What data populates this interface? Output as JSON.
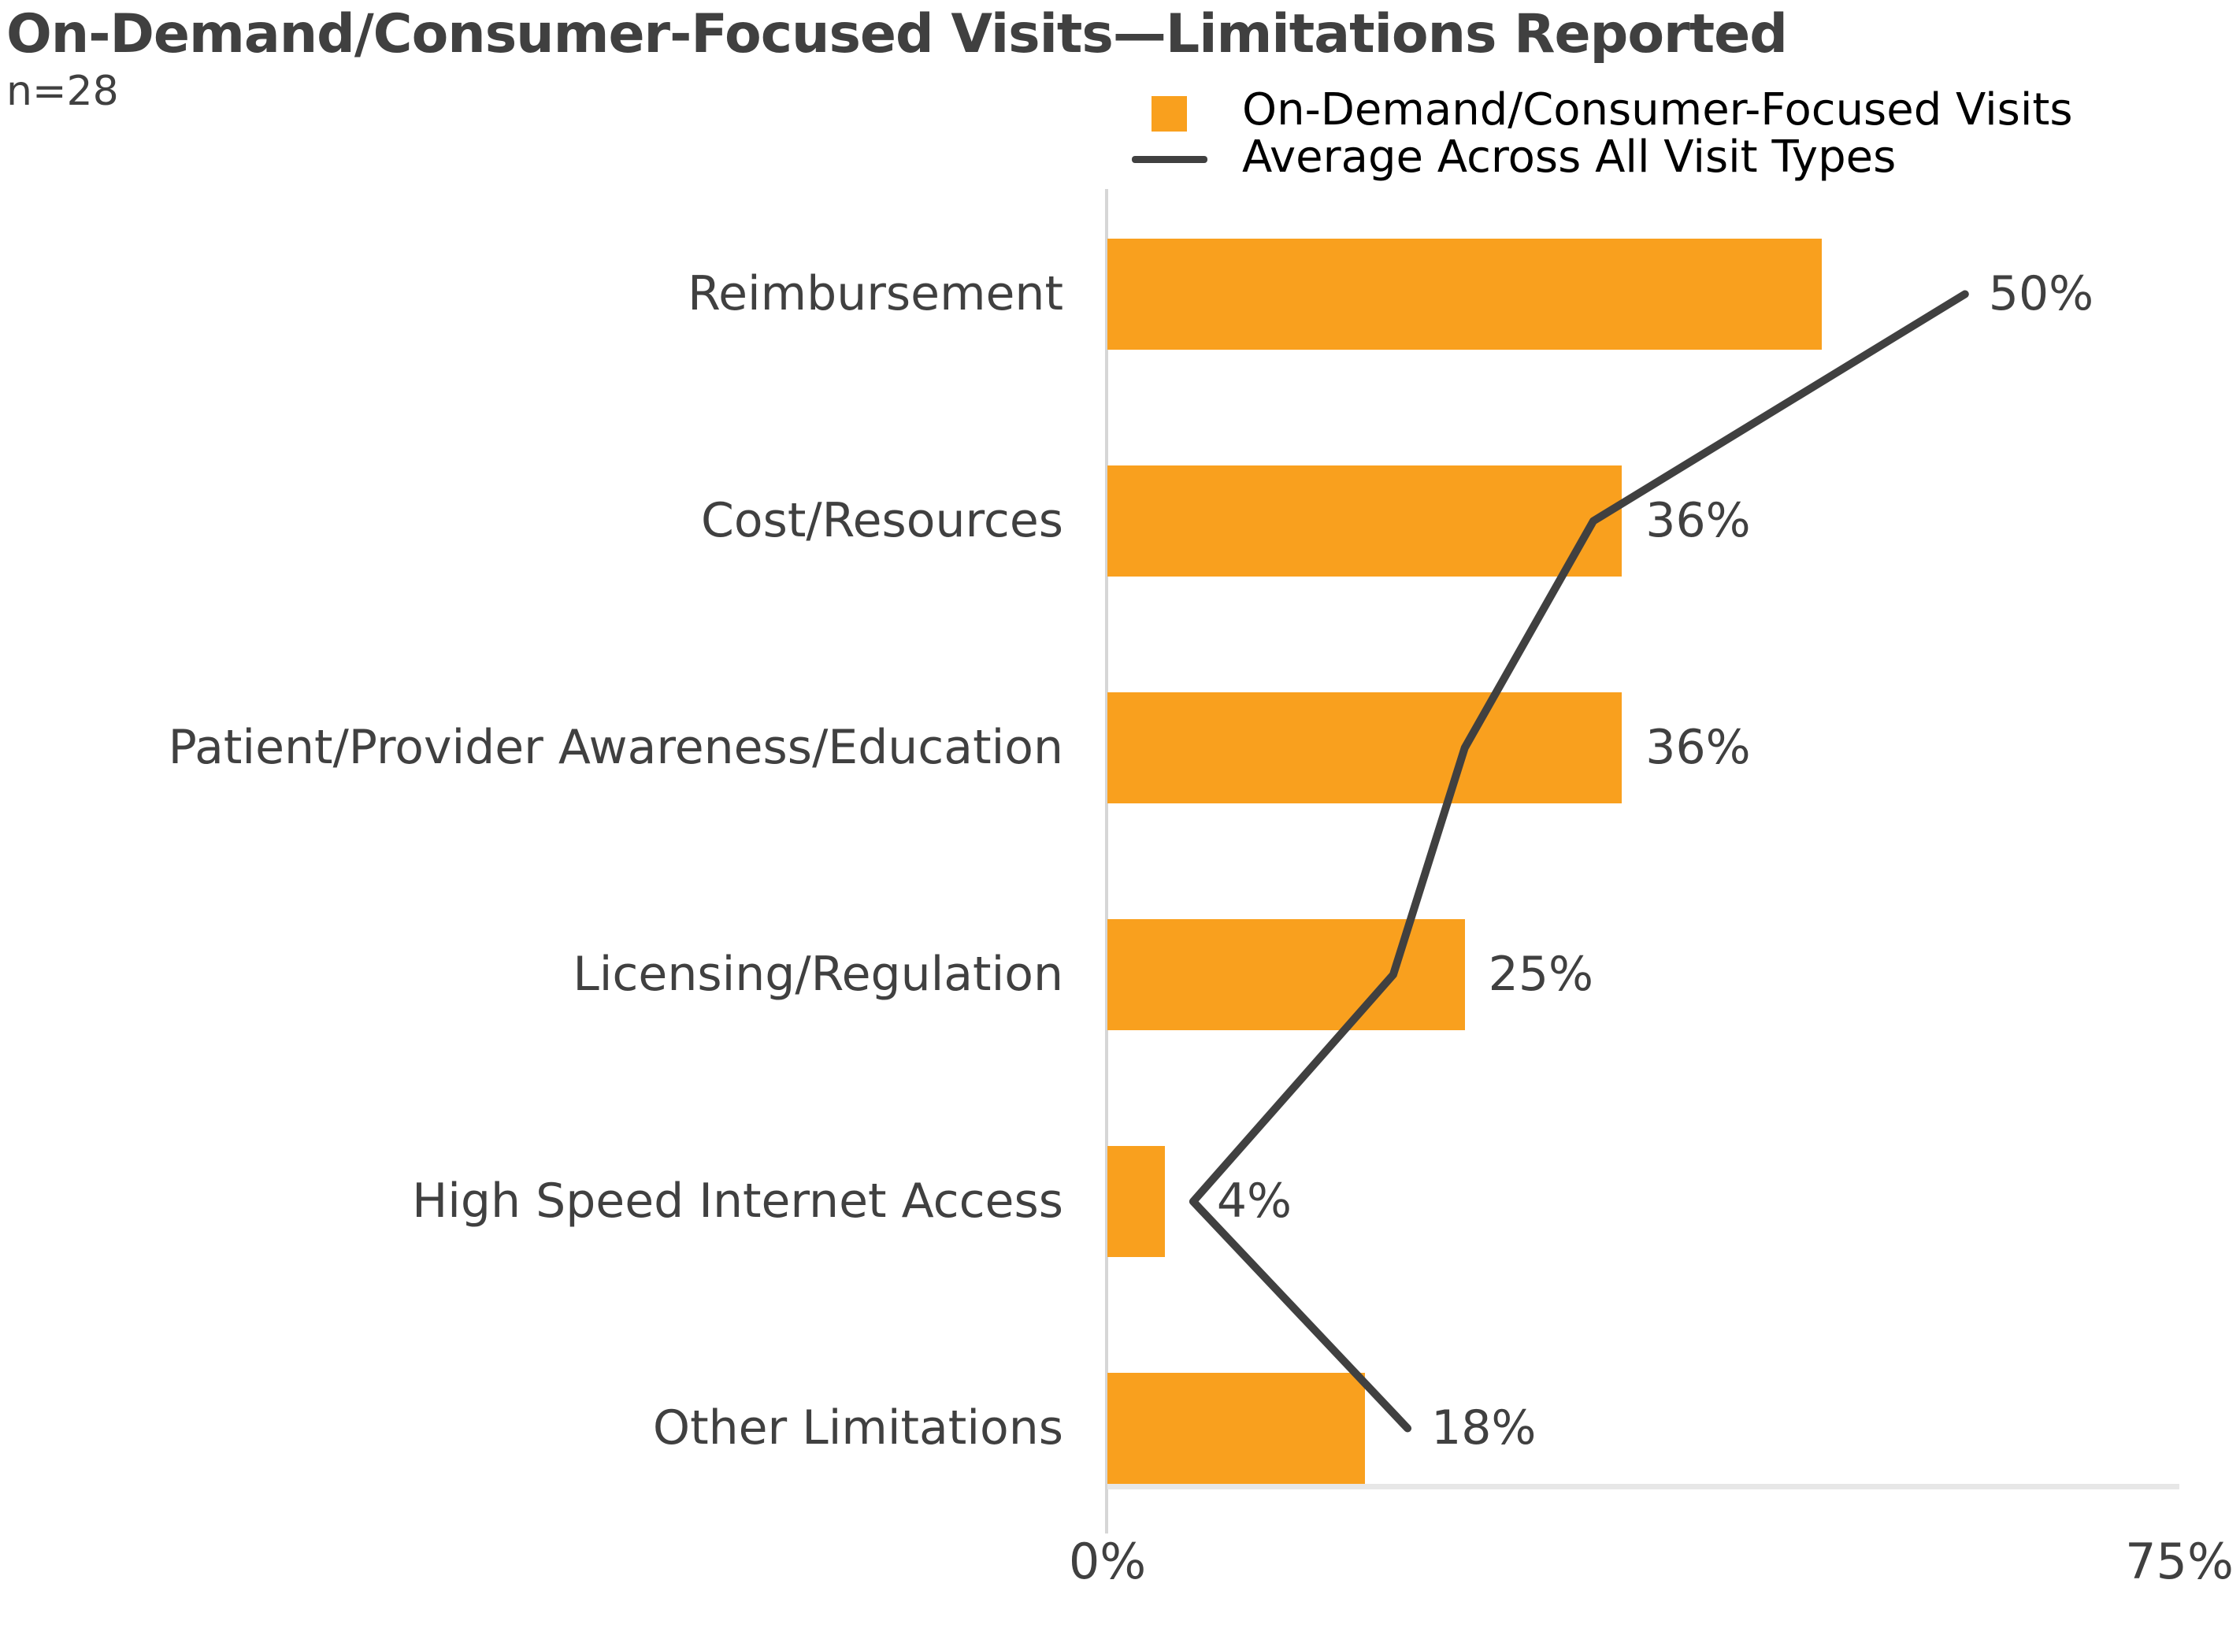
{
  "title": "On-Demand/Consumer-Focused Visits—Limitations Reported",
  "subtitle": "n=28",
  "legend": {
    "bar_series_label": "On-Demand/Consumer-Focused Visits",
    "line_series_label": "Average Across All Visit Types",
    "position": "top-right"
  },
  "colors": {
    "bar": "#F9A01E",
    "line": "#404040",
    "text": "#404040",
    "legend_text": "#000000",
    "axis_line": "#D6D6D6"
  },
  "chart_data": {
    "type": "bar",
    "orientation": "horizontal",
    "title": "On-Demand/Consumer-Focused Visits—Limitations Reported",
    "subtitle": "n=28",
    "categories": [
      "Reimbursement",
      "Cost/Resources",
      "Patient/Provider Awareness/Education",
      "Licensing/Regulation",
      "High Speed Internet Access",
      "Other Limitations"
    ],
    "series": [
      {
        "name": "On-Demand/Consumer-Focused Visits",
        "type": "bar",
        "values": [
          50,
          36,
          36,
          25,
          4,
          18
        ],
        "labels": [
          "50%",
          "36%",
          "36%",
          "25%",
          "4%",
          "18%"
        ]
      },
      {
        "name": "Average Across All Visit Types",
        "type": "line",
        "values": [
          60,
          34,
          25,
          20,
          6,
          21
        ]
      }
    ],
    "xlabel": "",
    "ylabel": "",
    "xlim": [
      0,
      75
    ],
    "x_ticks": [
      "0%",
      "75%"
    ],
    "grid": false,
    "legend_position": "top-right"
  }
}
